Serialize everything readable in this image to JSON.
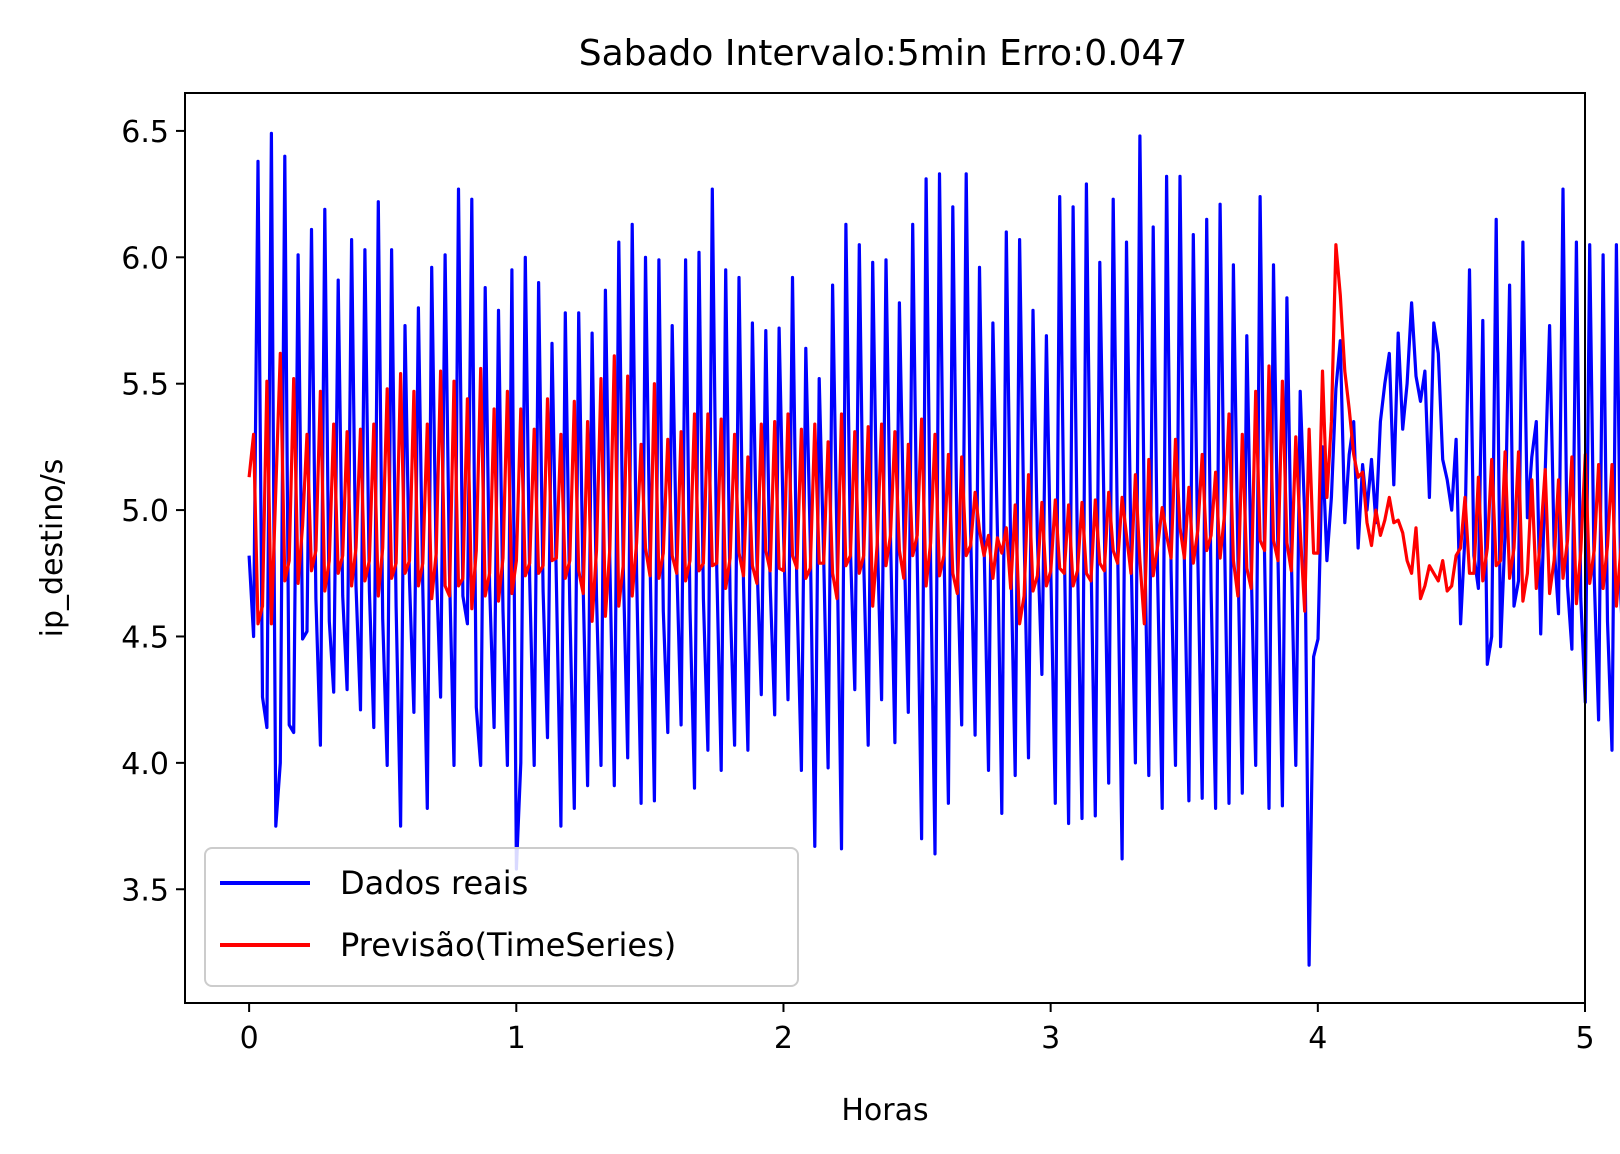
{
  "chart_data": {
    "type": "line",
    "title": "Sabado Intervalo:5min Erro:0.047",
    "xlabel": "Horas",
    "ylabel": "ip_destino/s",
    "xlim": [
      -0.24,
      5.0
    ],
    "ylim": [
      3.05,
      6.65
    ],
    "xticks": [
      0,
      1,
      2,
      3,
      4,
      5
    ],
    "xtick_labels": [
      "0",
      "1",
      "2",
      "3",
      "4",
      "5"
    ],
    "yticks": [
      3.5,
      4.0,
      4.5,
      5.0,
      5.5,
      6.0,
      6.5
    ],
    "ytick_labels": [
      "3.5",
      "4.0",
      "4.5",
      "5.0",
      "5.5",
      "6.0",
      "6.5"
    ],
    "grid": false,
    "legend_position": "lower-left",
    "series": [
      {
        "name": "Dados reais",
        "color": "#0000ff",
        "x_start": 0,
        "x_step": 0.01667,
        "values": [
          4.82,
          4.5,
          6.38,
          4.26,
          4.14,
          6.49,
          3.75,
          4.0,
          6.4,
          4.15,
          4.12,
          6.01,
          4.49,
          4.52,
          6.11,
          4.65,
          4.07,
          6.19,
          4.56,
          4.28,
          5.91,
          4.66,
          4.29,
          6.07,
          4.7,
          4.21,
          6.03,
          4.68,
          4.14,
          6.22,
          4.57,
          3.99,
          6.03,
          4.62,
          3.75,
          5.73,
          4.72,
          4.2,
          5.8,
          4.69,
          3.82,
          5.96,
          4.79,
          4.26,
          6.01,
          4.75,
          3.99,
          6.27,
          4.66,
          4.55,
          6.23,
          4.22,
          3.99,
          5.88,
          4.7,
          4.14,
          5.79,
          4.6,
          3.99,
          5.95,
          3.58,
          4.0,
          6.0,
          4.72,
          3.99,
          5.9,
          4.68,
          4.1,
          5.66,
          4.71,
          3.75,
          5.78,
          4.62,
          3.82,
          5.78,
          4.69,
          3.91,
          5.7,
          4.66,
          3.99,
          5.87,
          4.78,
          3.91,
          6.06,
          4.79,
          4.02,
          6.13,
          4.75,
          3.84,
          6.0,
          4.81,
          3.85,
          5.99,
          4.6,
          4.12,
          5.73,
          4.79,
          4.15,
          5.99,
          4.61,
          3.9,
          6.02,
          4.65,
          4.05,
          6.27,
          4.76,
          3.97,
          5.95,
          4.65,
          4.07,
          5.92,
          4.71,
          4.05,
          5.74,
          4.8,
          4.27,
          5.71,
          4.7,
          4.19,
          5.72,
          4.9,
          4.25,
          5.92,
          4.68,
          3.97,
          5.64,
          4.87,
          3.67,
          5.52,
          4.81,
          3.98,
          5.89,
          4.87,
          3.66,
          6.13,
          4.85,
          4.29,
          6.05,
          4.8,
          4.07,
          5.98,
          4.92,
          4.25,
          5.99,
          4.89,
          4.08,
          5.82,
          4.93,
          4.2,
          6.13,
          4.81,
          3.7,
          6.31,
          4.79,
          3.64,
          6.33,
          4.87,
          3.84,
          6.2,
          4.81,
          4.15,
          6.33,
          4.92,
          4.11,
          5.96,
          4.88,
          3.97,
          5.74,
          4.92,
          3.8,
          6.1,
          4.84,
          3.95,
          6.07,
          4.9,
          4.02,
          5.79,
          4.89,
          4.35,
          5.69,
          4.76,
          3.84,
          6.24,
          4.89,
          3.76,
          6.2,
          4.81,
          3.78,
          6.29,
          4.83,
          3.79,
          5.98,
          4.93,
          3.92,
          6.23,
          4.86,
          3.62,
          6.06,
          4.84,
          4.0,
          6.48,
          4.97,
          3.95,
          6.12,
          4.72,
          3.82,
          6.32,
          4.76,
          3.99,
          6.32,
          4.79,
          3.85,
          6.09,
          4.82,
          3.86,
          6.15,
          4.68,
          3.82,
          6.21,
          4.89,
          3.84,
          5.97,
          4.82,
          3.88,
          5.69,
          4.77,
          3.99,
          6.24,
          4.81,
          3.82,
          5.97,
          4.81,
          3.83,
          5.84,
          4.82,
          3.99,
          5.47,
          4.98,
          3.2,
          4.42,
          4.49,
          5.25,
          4.8,
          5.05,
          5.48,
          5.67,
          4.95,
          5.22,
          5.35,
          4.85,
          5.18,
          5.0,
          5.2,
          4.95,
          5.35,
          5.5,
          5.62,
          5.1,
          5.7,
          5.32,
          5.5,
          5.82,
          5.53,
          5.43,
          5.55,
          5.05,
          5.74,
          5.62,
          5.2,
          5.12,
          5.0,
          5.28,
          4.55,
          4.9,
          5.95,
          4.82,
          4.69,
          5.75,
          4.39,
          4.5,
          6.15,
          4.46,
          4.91,
          5.89,
          4.62,
          4.72,
          6.06,
          4.97,
          5.21,
          5.35,
          4.51,
          5.15,
          5.73,
          4.86,
          4.59,
          6.27,
          4.7,
          4.45,
          6.06,
          4.65,
          4.24,
          6.05,
          4.74,
          4.17,
          6.01,
          4.56,
          4.05,
          6.05,
          4.65,
          4.26,
          5.84,
          4.53,
          4.05,
          6.01,
          4.55,
          4.21,
          5.75,
          4.57,
          4.14,
          6.2,
          4.66,
          4.07,
          5.84,
          4.65,
          4.01,
          5.72,
          4.54,
          4.05,
          6.36,
          4.71,
          4.13,
          6.18,
          4.7,
          4.18,
          5.91,
          4.55,
          4.07,
          5.85,
          4.64,
          4.1,
          5.88,
          4.71,
          4.3,
          5.58
        ]
      },
      {
        "name": "Previsão(TimeSeries)",
        "color": "#ff0000",
        "x_start": 0,
        "x_step": 0.01667,
        "values": [
          5.13,
          5.3,
          4.55,
          4.62,
          5.51,
          4.55,
          5.08,
          5.62,
          4.72,
          4.8,
          5.52,
          4.71,
          4.94,
          5.3,
          4.76,
          4.84,
          5.47,
          4.68,
          4.8,
          5.34,
          4.75,
          4.82,
          5.31,
          4.7,
          4.85,
          5.32,
          4.72,
          4.8,
          5.34,
          4.66,
          4.85,
          5.48,
          4.73,
          4.79,
          5.54,
          4.75,
          4.8,
          5.47,
          4.7,
          4.79,
          5.34,
          4.65,
          4.83,
          5.55,
          4.7,
          4.66,
          5.51,
          4.7,
          4.73,
          5.44,
          4.61,
          4.84,
          5.56,
          4.66,
          4.75,
          5.4,
          4.64,
          4.81,
          5.47,
          4.67,
          4.8,
          5.4,
          4.74,
          4.79,
          5.32,
          4.75,
          4.78,
          5.44,
          4.8,
          4.81,
          5.3,
          4.73,
          4.8,
          5.43,
          4.76,
          4.67,
          5.35,
          4.56,
          4.84,
          5.52,
          4.58,
          4.85,
          5.61,
          4.62,
          4.78,
          5.53,
          4.66,
          4.87,
          5.26,
          4.85,
          4.74,
          5.5,
          4.73,
          4.83,
          5.28,
          4.82,
          4.75,
          5.31,
          4.72,
          4.8,
          5.38,
          4.76,
          4.79,
          5.38,
          4.78,
          4.79,
          5.36,
          4.69,
          4.81,
          5.3,
          4.83,
          4.74,
          5.21,
          4.78,
          4.71,
          5.34,
          4.84,
          4.76,
          5.35,
          4.77,
          4.76,
          5.38,
          4.82,
          4.77,
          5.32,
          4.73,
          4.77,
          5.34,
          4.79,
          4.79,
          5.27,
          4.75,
          4.65,
          5.38,
          4.78,
          4.82,
          5.31,
          4.75,
          4.82,
          5.33,
          4.62,
          4.86,
          5.34,
          4.78,
          4.9,
          5.31,
          4.84,
          4.73,
          5.26,
          4.82,
          4.9,
          5.36,
          4.7,
          4.87,
          5.3,
          4.74,
          4.82,
          5.22,
          4.75,
          4.67,
          5.21,
          4.82,
          4.86,
          5.07,
          4.92,
          4.82,
          4.9,
          4.73,
          4.89,
          4.83,
          4.93,
          4.69,
          5.02,
          4.55,
          4.66,
          5.14,
          4.68,
          4.74,
          5.03,
          4.7,
          4.76,
          5.04,
          4.77,
          4.75,
          5.02,
          4.7,
          4.76,
          5.03,
          4.75,
          4.72,
          5.04,
          4.79,
          4.76,
          5.07,
          4.84,
          4.79,
          5.05,
          4.9,
          4.75,
          5.14,
          4.8,
          4.55,
          5.2,
          4.74,
          4.86,
          5.01,
          4.9,
          4.81,
          5.28,
          4.93,
          4.81,
          5.09,
          4.79,
          4.92,
          5.22,
          4.84,
          4.9,
          5.15,
          4.81,
          4.98,
          5.38,
          4.8,
          4.66,
          5.3,
          4.77,
          4.69,
          5.47,
          4.88,
          4.84,
          5.57,
          4.88,
          4.8,
          5.51,
          4.87,
          4.76,
          5.29,
          4.92,
          4.6,
          5.32,
          4.83,
          4.83,
          5.55,
          5.05,
          5.35,
          6.05,
          5.85,
          5.55,
          5.4,
          5.22,
          5.13,
          5.15,
          4.95,
          4.86,
          5.0,
          4.9,
          4.96,
          5.05,
          4.95,
          4.96,
          4.91,
          4.8,
          4.75,
          4.93,
          4.65,
          4.7,
          4.78,
          4.75,
          4.72,
          4.8,
          4.68,
          4.7,
          4.82,
          4.85,
          5.05,
          4.75,
          4.75,
          5.13,
          4.72,
          4.85,
          5.2,
          4.78,
          4.8,
          5.23,
          4.73,
          4.85,
          5.23,
          4.64,
          4.75,
          5.12,
          4.69,
          4.9,
          5.16,
          4.67,
          4.8,
          5.12,
          4.73,
          4.88,
          5.21,
          4.63,
          4.84,
          5.22,
          4.71,
          4.84,
          5.18,
          4.69,
          4.86,
          5.18,
          4.62,
          4.85,
          5.23,
          4.7,
          4.84,
          5.27,
          4.7,
          4.83,
          5.22,
          4.7,
          4.85,
          5.26,
          4.71,
          4.85,
          5.18,
          4.65,
          4.82,
          5.33,
          4.67,
          4.83,
          5.35,
          4.72,
          4.81,
          5.25,
          4.68,
          4.81,
          5.16,
          4.72,
          4.82,
          5.15,
          4.71,
          4.8,
          5.2,
          4.77,
          4.87
        ]
      }
    ]
  }
}
